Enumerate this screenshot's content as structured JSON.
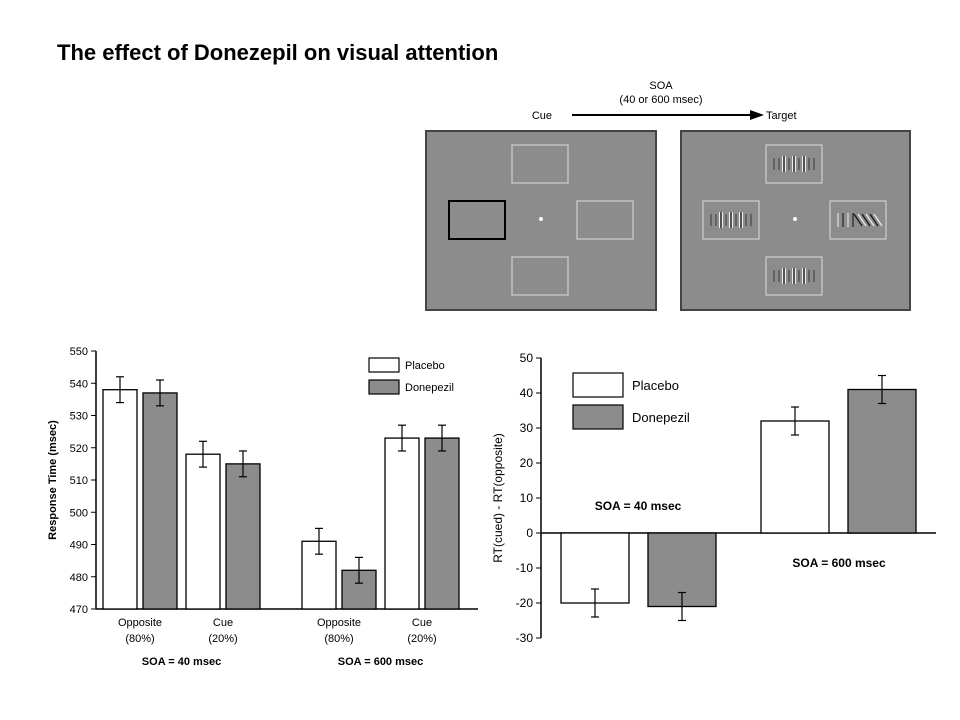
{
  "title": "The effect of Donezepil on visual attention",
  "diagram": {
    "soa_label": "SOA",
    "soa_sub": "(40 or 600 msec)",
    "cue_label": "Cue",
    "target_label": "Target",
    "colors": {
      "screen": "#8c8c8c",
      "frame": "#444444",
      "box": "#cfcfcf"
    }
  },
  "chart_data": [
    {
      "type": "bar",
      "ylabel": "Response Time (msec)",
      "ylim": [
        470,
        550
      ],
      "yticks": [
        470,
        480,
        490,
        500,
        510,
        520,
        530,
        540,
        550
      ],
      "groups": [
        {
          "label": "SOA = 40 msec",
          "categories": [
            {
              "line1": "Opposite",
              "line2": "(80%)"
            },
            {
              "line1": "Cue",
              "line2": "(20%)"
            }
          ]
        },
        {
          "label": "SOA = 600 msec",
          "categories": [
            {
              "line1": "Opposite",
              "line2": "(80%)"
            },
            {
              "line1": "Cue",
              "line2": "(20%)"
            }
          ]
        }
      ],
      "series": [
        {
          "name": "Placebo",
          "color": "#ffffff",
          "values": [
            538,
            518,
            491,
            523
          ],
          "errors": [
            4,
            4,
            4,
            4
          ]
        },
        {
          "name": "Donepezil",
          "color": "#8c8c8c",
          "values": [
            537,
            515,
            482,
            523
          ],
          "errors": [
            4,
            4,
            4,
            4
          ]
        }
      ],
      "legend": "top-right"
    },
    {
      "type": "bar",
      "ylabel": "RT(cued) - RT(opposite)",
      "ylim": [
        -30,
        50
      ],
      "yticks": [
        -30,
        -20,
        -10,
        0,
        10,
        20,
        30,
        40,
        50
      ],
      "groups": [
        {
          "label": "SOA = 40 msec"
        },
        {
          "label": "SOA = 600 msec"
        }
      ],
      "series": [
        {
          "name": "Placebo",
          "color": "#ffffff",
          "values": [
            -20,
            32
          ],
          "errors": [
            4,
            4
          ]
        },
        {
          "name": "Donepezil",
          "color": "#8c8c8c",
          "values": [
            -21,
            41
          ],
          "errors": [
            4,
            4
          ]
        }
      ],
      "legend": "top-left"
    }
  ]
}
